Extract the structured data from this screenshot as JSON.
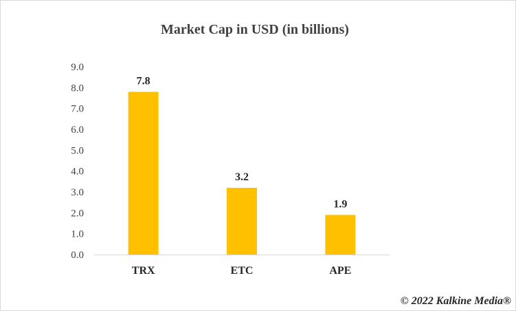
{
  "chart_data": {
    "type": "bar",
    "title": "Market Cap in USD (in billions)",
    "categories": [
      "TRX",
      "ETC",
      "APE"
    ],
    "values": [
      7.8,
      3.2,
      1.9
    ],
    "data_labels": [
      "7.8",
      "3.2",
      "1.9"
    ],
    "y_ticks": [
      "0.0",
      "1.0",
      "2.0",
      "3.0",
      "4.0",
      "5.0",
      "6.0",
      "7.0",
      "8.0",
      "9.0"
    ],
    "ylim": [
      0,
      9
    ],
    "xlabel": "",
    "ylabel": "",
    "grid": false,
    "legend": "none",
    "bar_color": "#FFC000"
  },
  "watermark": "© 2022 Kalkine Media®"
}
